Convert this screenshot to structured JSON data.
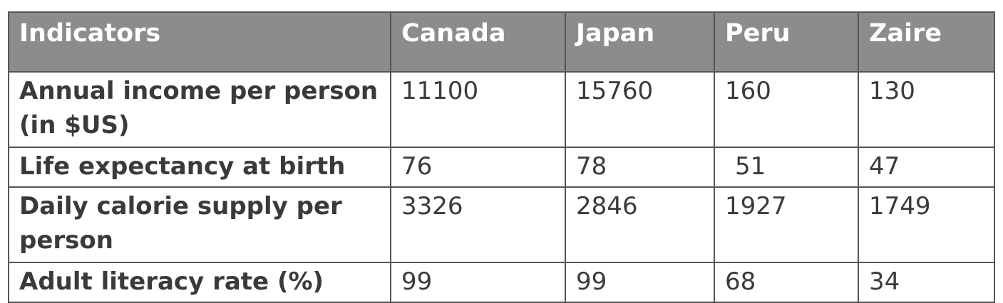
{
  "chart_data": {
    "type": "table",
    "columns": [
      "Indicators",
      "Canada",
      "Japan",
      "Peru",
      "Zaire"
    ],
    "rows": [
      {
        "indicator": "Annual income per person (in $US)",
        "values": [
          "11100",
          "15760",
          "160",
          "130"
        ]
      },
      {
        "indicator": "Life expectancy at birth",
        "values": [
          "76",
          "78",
          "51",
          "47"
        ]
      },
      {
        "indicator": "Daily calorie supply per person",
        "values": [
          "3326",
          "2846",
          "1927",
          "1749"
        ]
      },
      {
        "indicator": "Adult literacy rate (%)",
        "values": [
          "99",
          "99",
          "68",
          "34"
        ]
      }
    ]
  },
  "colors": {
    "header_background": "#8c8c8c",
    "header_text": "#ffffff",
    "body_text": "#3a3a3a",
    "border": "#555555"
  }
}
